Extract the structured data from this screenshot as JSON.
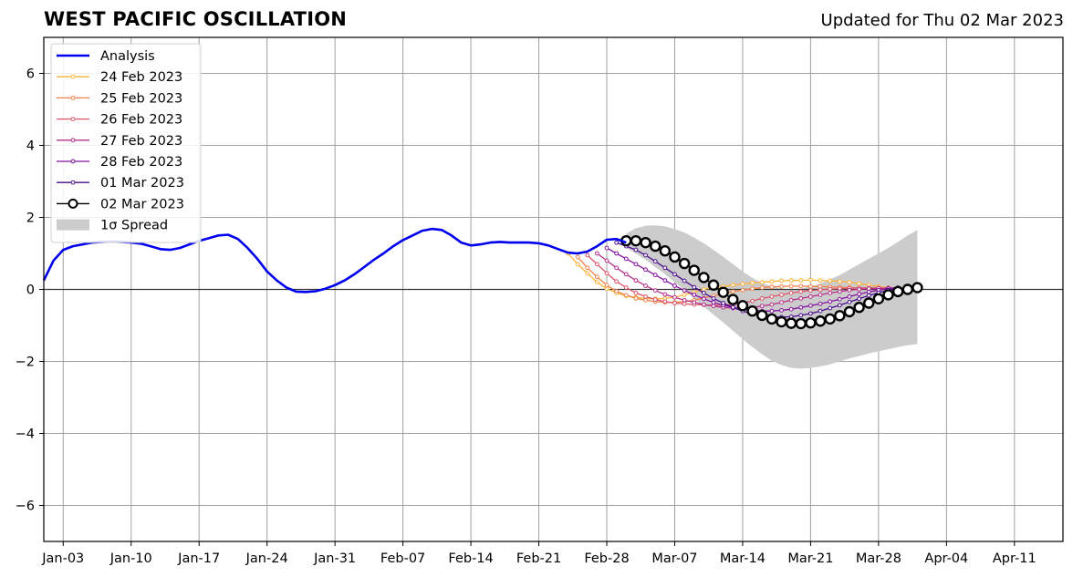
{
  "title": "WEST PACIFIC OSCILLATION",
  "updated": "Updated for Thu 02 Mar 2023",
  "chart_data": {
    "type": "line",
    "title": "WEST PACIFIC OSCILLATION",
    "x_ticks": [
      "Jan-03",
      "Jan-10",
      "Jan-17",
      "Jan-24",
      "Jan-31",
      "Feb-07",
      "Feb-14",
      "Feb-21",
      "Feb-28",
      "Mar-07",
      "Mar-14",
      "Mar-21",
      "Mar-28",
      "Apr-04",
      "Apr-11"
    ],
    "x_tick_days": [
      2,
      9,
      16,
      23,
      30,
      37,
      44,
      51,
      58,
      65,
      72,
      79,
      86,
      93,
      100
    ],
    "xlim_days": [
      0,
      105
    ],
    "x_origin": "2023-01-01",
    "ylim": [
      -7,
      7
    ],
    "y_ticks": [
      -6,
      -4,
      -2,
      0,
      2,
      4,
      6
    ],
    "y_tick_labels": [
      "−6",
      "−4",
      "−2",
      "0",
      "2",
      "4",
      "6"
    ],
    "grid": true,
    "legend_position": "top-left",
    "legend": [
      "Analysis",
      "24 Feb 2023",
      "25 Feb 2023",
      "26 Feb 2023",
      "27 Feb 2023",
      "28 Feb 2023",
      "01 Mar 2023",
      "02 Mar 2023",
      "1σ Spread"
    ],
    "colors": {
      "analysis": "#0000ee",
      "24 Feb 2023": "#fdb338",
      "25 Feb 2023": "#f0814a",
      "26 Feb 2023": "#d9546a",
      "27 Feb 2023": "#b5318a",
      "28 Feb 2023": "#85129f",
      "01 Mar 2023": "#4a0c8f",
      "02 Mar 2023": "#000000",
      "spread": "#cccccc"
    },
    "analysis": {
      "x": [
        0,
        1,
        2,
        3,
        4,
        5,
        6,
        7,
        8,
        9,
        10,
        11,
        12,
        13,
        14,
        15,
        16,
        17,
        18,
        19,
        20,
        21,
        22,
        23,
        24,
        25,
        26,
        27,
        28,
        29,
        30,
        31,
        32,
        33,
        34,
        35,
        36,
        37,
        38,
        39,
        40,
        41,
        42,
        43,
        44,
        45,
        46,
        47,
        48,
        49,
        50,
        51,
        52,
        53,
        54,
        55,
        56,
        57,
        58,
        59,
        60
      ],
      "y": [
        0.25,
        0.8,
        1.1,
        1.2,
        1.25,
        1.3,
        1.32,
        1.33,
        1.32,
        1.3,
        1.27,
        1.2,
        1.12,
        1.1,
        1.15,
        1.25,
        1.35,
        1.42,
        1.5,
        1.52,
        1.4,
        1.15,
        0.85,
        0.5,
        0.25,
        0.05,
        -0.06,
        -0.07,
        -0.05,
        0.02,
        0.12,
        0.25,
        0.42,
        0.62,
        0.82,
        1.0,
        1.2,
        1.37,
        1.5,
        1.63,
        1.68,
        1.65,
        1.5,
        1.3,
        1.22,
        1.25,
        1.3,
        1.32,
        1.3,
        1.3,
        1.3,
        1.28,
        1.22,
        1.12,
        1.02,
        1.0,
        1.05,
        1.2,
        1.38,
        1.4,
        1.3
      ]
    },
    "forecasts": [
      {
        "name": "24 Feb 2023",
        "x": [
          54,
          55,
          56,
          57,
          58,
          59,
          60,
          61,
          62,
          63,
          64,
          65,
          66,
          67,
          68,
          69,
          70,
          71,
          72,
          73,
          74,
          75,
          76,
          77,
          78,
          79,
          80,
          81,
          82,
          83,
          84,
          85,
          86,
          87,
          88
        ],
        "y": [
          1.0,
          0.7,
          0.45,
          0.2,
          0.02,
          -0.1,
          -0.18,
          -0.22,
          -0.25,
          -0.26,
          -0.25,
          -0.22,
          -0.15,
          -0.08,
          0.0,
          0.05,
          0.08,
          0.12,
          0.15,
          0.18,
          0.2,
          0.22,
          0.24,
          0.25,
          0.25,
          0.26,
          0.25,
          0.24,
          0.22,
          0.2,
          0.16,
          0.12,
          0.08,
          0.05,
          0.03
        ]
      },
      {
        "name": "25 Feb 2023",
        "x": [
          55,
          56,
          57,
          58,
          59,
          60,
          61,
          62,
          63,
          64,
          65,
          66,
          67,
          68,
          69,
          70,
          71,
          72,
          73,
          74,
          75,
          76,
          77,
          78,
          79,
          80,
          81,
          82,
          83,
          84,
          85,
          86,
          87,
          88
        ],
        "y": [
          0.9,
          0.6,
          0.35,
          0.12,
          -0.05,
          -0.16,
          -0.25,
          -0.3,
          -0.34,
          -0.36,
          -0.36,
          -0.34,
          -0.3,
          -0.24,
          -0.18,
          -0.12,
          -0.06,
          -0.02,
          0.02,
          0.05,
          0.07,
          0.08,
          0.09,
          0.09,
          0.08,
          0.08,
          0.07,
          0.06,
          0.05,
          0.04,
          0.03,
          0.02,
          0.02,
          0.01
        ]
      },
      {
        "name": "26 Feb 2023",
        "x": [
          56,
          57,
          58,
          59,
          60,
          61,
          62,
          63,
          64,
          65,
          66,
          67,
          68,
          69,
          70,
          71,
          72,
          73,
          74,
          75,
          76,
          77,
          78,
          79,
          80,
          81,
          82,
          83,
          84,
          85,
          86,
          87,
          88
        ],
        "y": [
          0.95,
          0.7,
          0.45,
          0.22,
          0.05,
          -0.1,
          -0.2,
          -0.28,
          -0.34,
          -0.38,
          -0.4,
          -0.42,
          -0.43,
          -0.44,
          -0.44,
          -0.42,
          -0.38,
          -0.32,
          -0.25,
          -0.2,
          -0.15,
          -0.1,
          -0.06,
          -0.03,
          -0.01,
          0.01,
          0.02,
          0.03,
          0.04,
          0.04,
          0.04,
          0.03,
          0.02
        ]
      },
      {
        "name": "27 Feb 2023",
        "x": [
          57,
          58,
          59,
          60,
          61,
          62,
          63,
          64,
          65,
          66,
          67,
          68,
          69,
          70,
          71,
          72,
          73,
          74,
          75,
          76,
          77,
          78,
          79,
          80,
          81,
          82,
          83,
          84,
          85,
          86,
          87,
          88
        ],
        "y": [
          1.0,
          0.8,
          0.6,
          0.42,
          0.25,
          0.1,
          -0.03,
          -0.14,
          -0.22,
          -0.3,
          -0.36,
          -0.42,
          -0.46,
          -0.5,
          -0.52,
          -0.52,
          -0.5,
          -0.46,
          -0.42,
          -0.36,
          -0.3,
          -0.25,
          -0.2,
          -0.15,
          -0.1,
          -0.06,
          -0.02,
          0.0,
          0.02,
          0.03,
          0.04,
          0.04
        ]
      },
      {
        "name": "28 Feb 2023",
        "x": [
          58,
          59,
          60,
          61,
          62,
          63,
          64,
          65,
          66,
          67,
          68,
          69,
          70,
          71,
          72,
          73,
          74,
          75,
          76,
          77,
          78,
          79,
          80,
          81,
          82,
          83,
          84,
          85,
          86,
          87,
          88
        ],
        "y": [
          1.15,
          1.0,
          0.85,
          0.7,
          0.55,
          0.4,
          0.25,
          0.1,
          -0.03,
          -0.15,
          -0.26,
          -0.36,
          -0.44,
          -0.5,
          -0.55,
          -0.58,
          -0.6,
          -0.6,
          -0.58,
          -0.55,
          -0.5,
          -0.45,
          -0.4,
          -0.34,
          -0.27,
          -0.2,
          -0.13,
          -0.07,
          -0.02,
          0.02,
          0.05
        ]
      },
      {
        "name": "01 Mar 2023",
        "x": [
          59,
          60,
          61,
          62,
          63,
          64,
          65,
          66,
          67,
          68,
          69,
          70,
          71,
          72,
          73,
          74,
          75,
          76,
          77,
          78,
          79,
          80,
          81,
          82,
          83,
          84,
          85,
          86,
          87,
          88
        ],
        "y": [
          1.3,
          1.2,
          1.1,
          0.95,
          0.78,
          0.6,
          0.42,
          0.24,
          0.06,
          -0.1,
          -0.25,
          -0.38,
          -0.5,
          -0.6,
          -0.68,
          -0.73,
          -0.76,
          -0.77,
          -0.76,
          -0.72,
          -0.67,
          -0.6,
          -0.52,
          -0.44,
          -0.35,
          -0.26,
          -0.17,
          -0.09,
          -0.02,
          0.03
        ]
      },
      {
        "name": "02 Mar 2023",
        "x": [
          60,
          61,
          62,
          63,
          64,
          65,
          66,
          67,
          68,
          69,
          70,
          71,
          72,
          73,
          74,
          75,
          76,
          77,
          78,
          79,
          80,
          81,
          82,
          83,
          84,
          85,
          86,
          87,
          88,
          89,
          90
        ],
        "y": [
          1.35,
          1.35,
          1.3,
          1.2,
          1.07,
          0.9,
          0.72,
          0.53,
          0.33,
          0.12,
          -0.08,
          -0.28,
          -0.45,
          -0.6,
          -0.72,
          -0.82,
          -0.9,
          -0.94,
          -0.95,
          -0.93,
          -0.88,
          -0.82,
          -0.73,
          -0.62,
          -0.5,
          -0.38,
          -0.26,
          -0.15,
          -0.06,
          0.0,
          0.05
        ]
      }
    ],
    "spread": {
      "x": [
        60,
        61,
        62,
        63,
        64,
        65,
        66,
        67,
        68,
        69,
        70,
        71,
        72,
        73,
        74,
        75,
        76,
        77,
        78,
        79,
        80,
        81,
        82,
        83,
        84,
        85,
        86,
        87,
        88,
        89,
        90
      ],
      "upper": [
        1.55,
        1.7,
        1.77,
        1.78,
        1.75,
        1.68,
        1.58,
        1.44,
        1.28,
        1.1,
        0.9,
        0.7,
        0.5,
        0.32,
        0.18,
        0.08,
        0.02,
        0.0,
        0.02,
        0.08,
        0.16,
        0.28,
        0.4,
        0.55,
        0.7,
        0.85,
        1.0,
        1.15,
        1.32,
        1.5,
        1.65
      ],
      "lower": [
        1.15,
        1.0,
        0.82,
        0.62,
        0.42,
        0.2,
        -0.02,
        -0.25,
        -0.48,
        -0.7,
        -0.92,
        -1.15,
        -1.38,
        -1.6,
        -1.8,
        -1.98,
        -2.1,
        -2.18,
        -2.2,
        -2.18,
        -2.14,
        -2.08,
        -2.0,
        -1.92,
        -1.85,
        -1.78,
        -1.72,
        -1.66,
        -1.6,
        -1.55,
        -1.52
      ]
    }
  }
}
